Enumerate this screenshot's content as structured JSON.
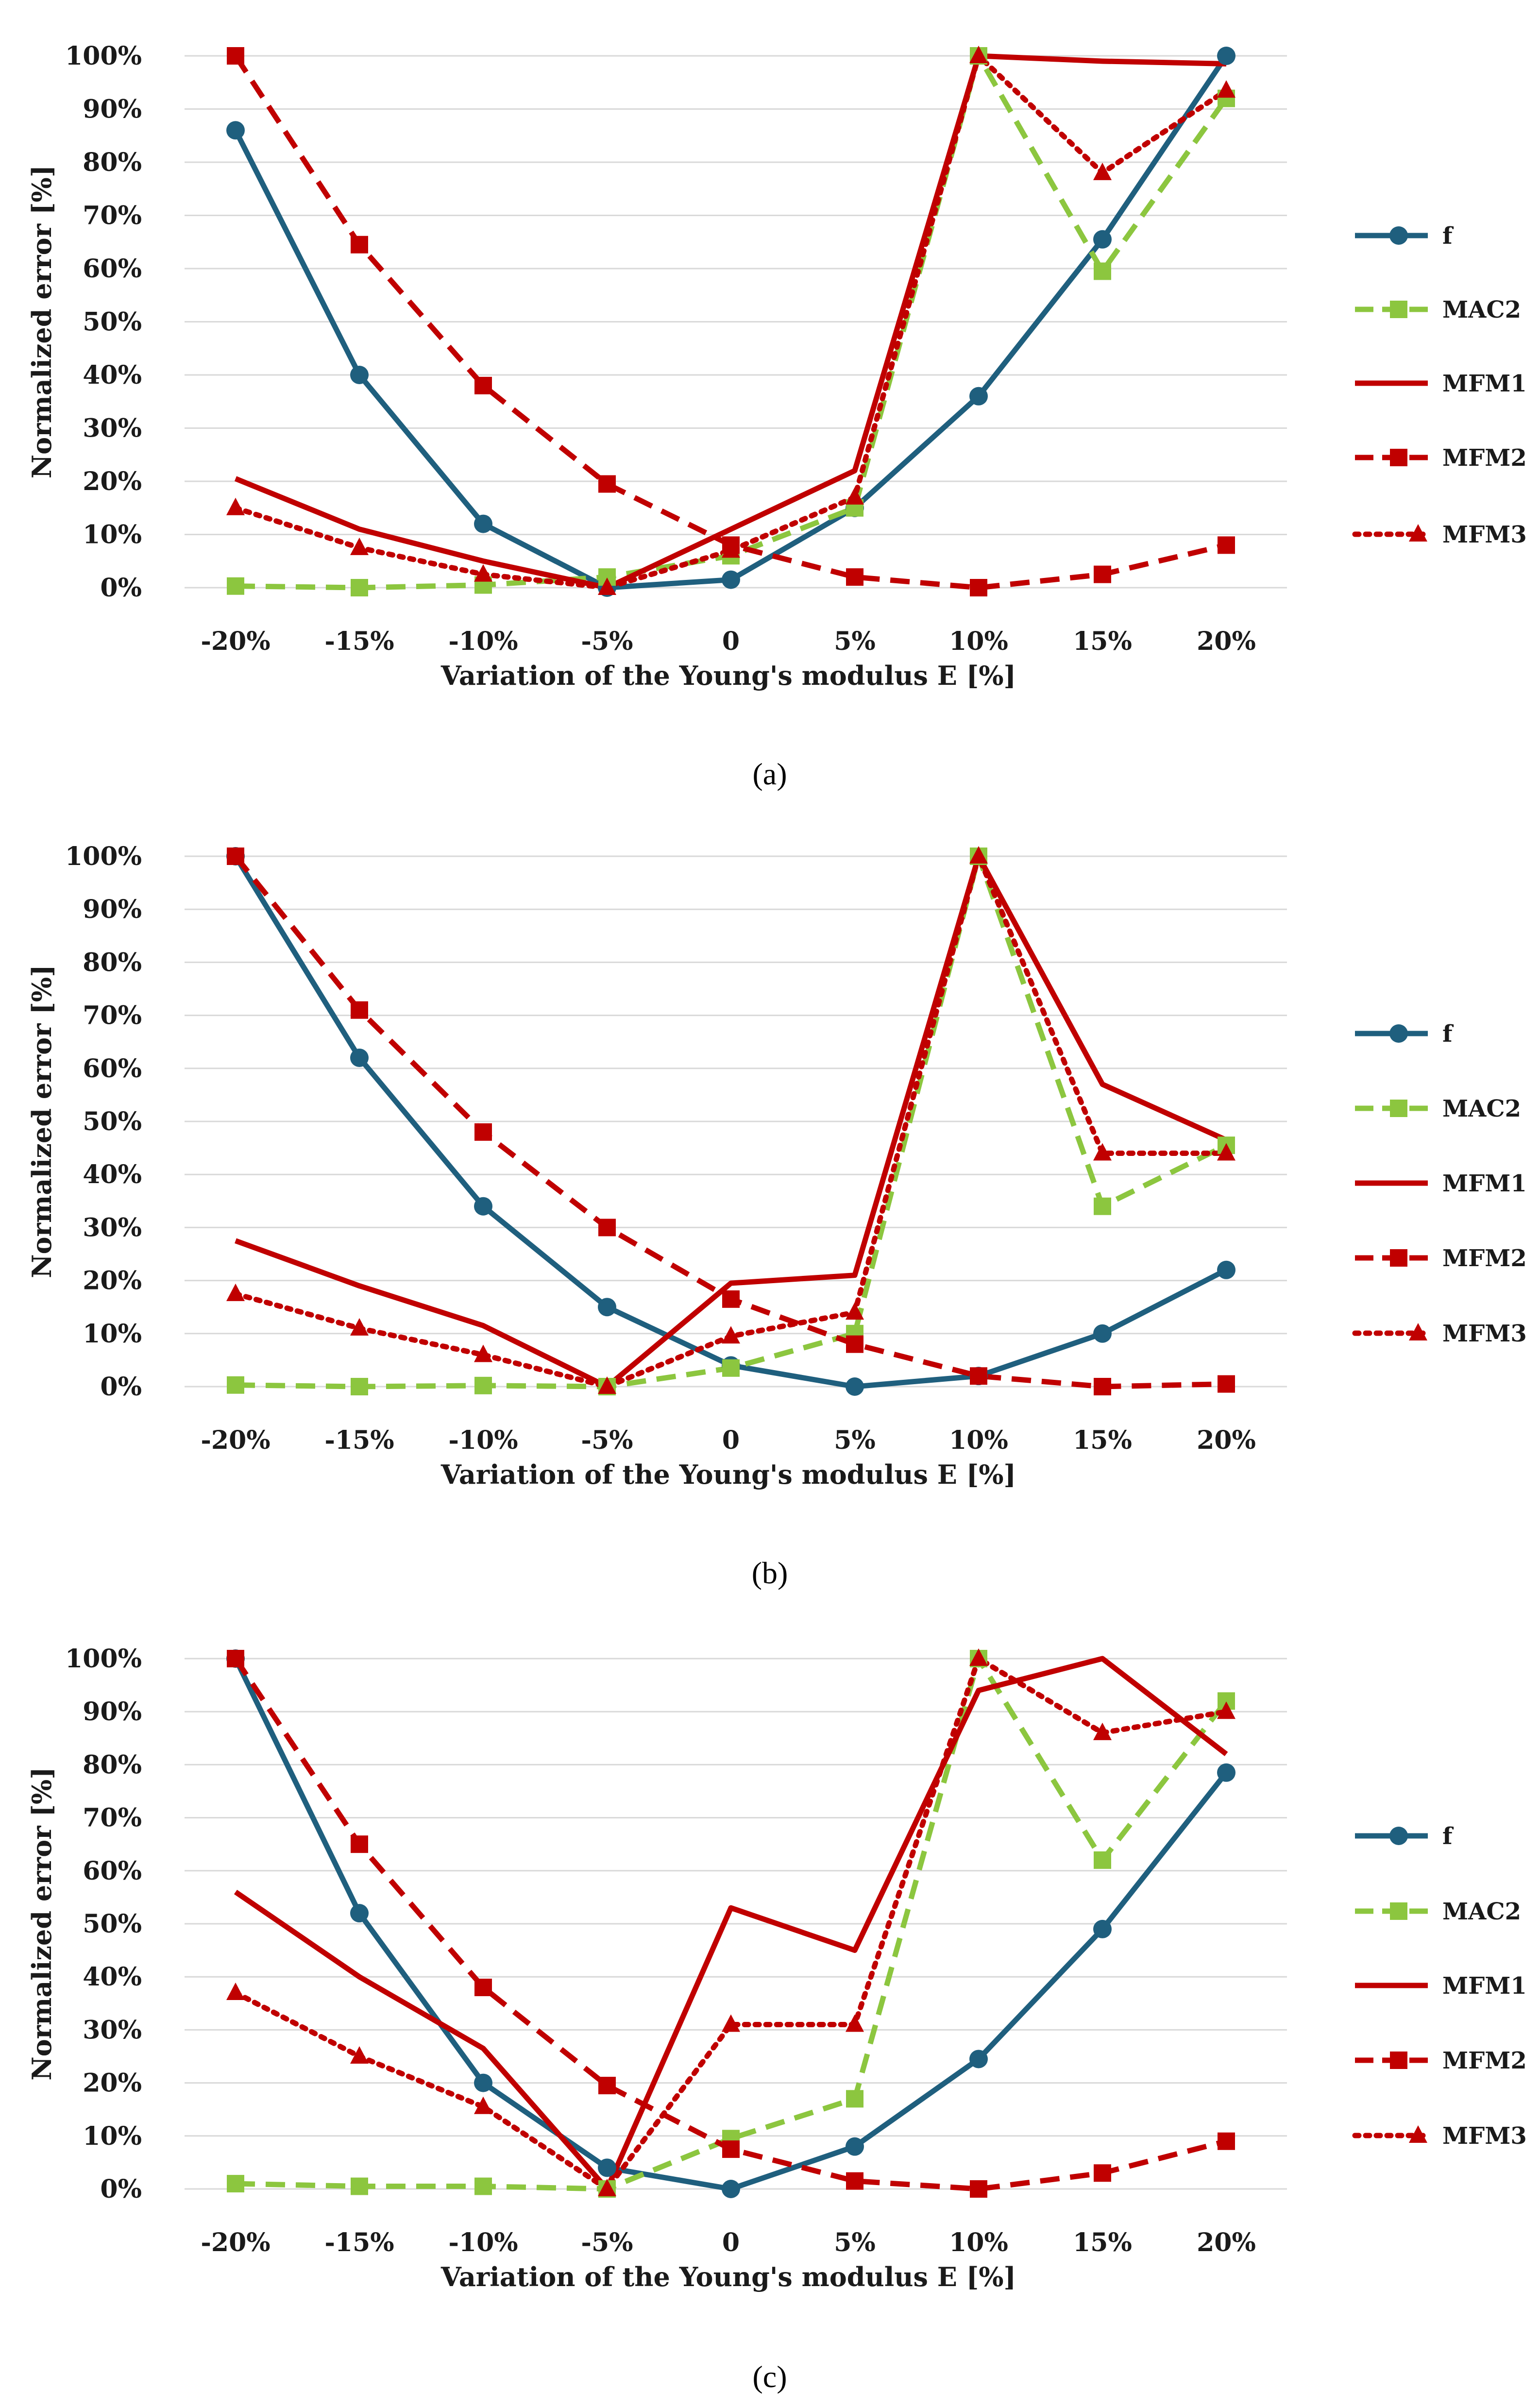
{
  "chart_data": [
    {
      "type": "line",
      "panel_label": "(a)",
      "categories": [
        "-20%",
        "-15%",
        "-10%",
        "-5%",
        "0",
        "5%",
        "10%",
        "15%",
        "20%"
      ],
      "xlabel": "Variation of the Young's modulus E [%]",
      "ylabel": "Normalized error [%]",
      "ylim": [
        0,
        100
      ],
      "yticks": [
        "0%",
        "10%",
        "20%",
        "30%",
        "40%",
        "50%",
        "60%",
        "70%",
        "80%",
        "90%",
        "100%"
      ],
      "legend_position": "right",
      "series": [
        {
          "name": "f",
          "color": "#1f5f7e",
          "style": "solid",
          "marker": "circle",
          "values": [
            86,
            40,
            12,
            0,
            1.5,
            15,
            36,
            65.5,
            100
          ]
        },
        {
          "name": "MAC2",
          "color": "#8cc63f",
          "style": "dashed",
          "marker": "square",
          "values": [
            0.3,
            0,
            0.5,
            2,
            6,
            15,
            100,
            59.5,
            92
          ]
        },
        {
          "name": "MFM1",
          "color": "#c00000",
          "style": "solid",
          "marker": "none",
          "values": [
            20.5,
            11,
            5,
            0,
            11,
            22,
            100,
            99,
            98.5
          ]
        },
        {
          "name": "MFM2",
          "color": "#c00000",
          "style": "dashed",
          "marker": "square",
          "values": [
            100,
            64.5,
            38,
            19.5,
            8,
            2,
            0,
            2.5,
            8
          ]
        },
        {
          "name": "MFM3",
          "color": "#c00000",
          "style": "dotted",
          "marker": "triangle",
          "values": [
            15,
            7.5,
            2.5,
            0,
            7,
            17,
            100,
            78,
            93.5
          ]
        }
      ]
    },
    {
      "type": "line",
      "panel_label": "(b)",
      "categories": [
        "-20%",
        "-15%",
        "-10%",
        "-5%",
        "0",
        "5%",
        "10%",
        "15%",
        "20%"
      ],
      "xlabel": "Variation of the Young's modulus E [%]",
      "ylabel": "Normalized error [%]",
      "ylim": [
        0,
        100
      ],
      "yticks": [
        "0%",
        "10%",
        "20%",
        "30%",
        "40%",
        "50%",
        "60%",
        "70%",
        "80%",
        "90%",
        "100%"
      ],
      "legend_position": "right",
      "series": [
        {
          "name": "f",
          "color": "#1f5f7e",
          "style": "solid",
          "marker": "circle",
          "values": [
            100,
            62,
            34,
            15,
            4,
            0,
            2,
            10,
            22
          ]
        },
        {
          "name": "MAC2",
          "color": "#8cc63f",
          "style": "dashed",
          "marker": "square",
          "values": [
            0.3,
            0,
            0.2,
            0,
            3.5,
            10,
            100,
            34,
            45.5
          ]
        },
        {
          "name": "MFM1",
          "color": "#c00000",
          "style": "solid",
          "marker": "none",
          "values": [
            27.5,
            19,
            11.5,
            0,
            19.5,
            21,
            100,
            57,
            46.5
          ]
        },
        {
          "name": "MFM2",
          "color": "#c00000",
          "style": "dashed",
          "marker": "square",
          "values": [
            100,
            71,
            48,
            30,
            16.5,
            8,
            2,
            0,
            0.5
          ]
        },
        {
          "name": "MFM3",
          "color": "#c00000",
          "style": "dotted",
          "marker": "triangle",
          "values": [
            17.5,
            11,
            6,
            0,
            9.5,
            14,
            100,
            44,
            44
          ]
        }
      ]
    },
    {
      "type": "line",
      "panel_label": "(c)",
      "categories": [
        "-20%",
        "-15%",
        "-10%",
        "-5%",
        "0",
        "5%",
        "10%",
        "15%",
        "20%"
      ],
      "xlabel": "Variation of the Young's modulus E [%]",
      "ylabel": "Normalized error [%]",
      "ylim": [
        0,
        100
      ],
      "yticks": [
        "0%",
        "10%",
        "20%",
        "30%",
        "40%",
        "50%",
        "60%",
        "70%",
        "80%",
        "90%",
        "100%"
      ],
      "legend_position": "right",
      "series": [
        {
          "name": "f",
          "color": "#1f5f7e",
          "style": "solid",
          "marker": "circle",
          "values": [
            100,
            52,
            20,
            4,
            0,
            8,
            24.5,
            49,
            78.5
          ]
        },
        {
          "name": "MAC2",
          "color": "#8cc63f",
          "style": "dashed",
          "marker": "square",
          "values": [
            1,
            0.5,
            0.5,
            0,
            9.5,
            17,
            100,
            62,
            92
          ]
        },
        {
          "name": "MFM1",
          "color": "#c00000",
          "style": "solid",
          "marker": "none",
          "values": [
            56,
            40,
            26.5,
            0,
            53,
            45,
            94,
            100,
            82
          ]
        },
        {
          "name": "MFM2",
          "color": "#c00000",
          "style": "dashed",
          "marker": "square",
          "values": [
            100,
            65,
            38,
            19.5,
            7.5,
            1.5,
            0,
            3,
            9
          ]
        },
        {
          "name": "MFM3",
          "color": "#c00000",
          "style": "dotted",
          "marker": "triangle",
          "values": [
            37,
            25,
            15.5,
            0,
            31,
            31,
            100,
            86,
            90
          ]
        }
      ]
    }
  ]
}
